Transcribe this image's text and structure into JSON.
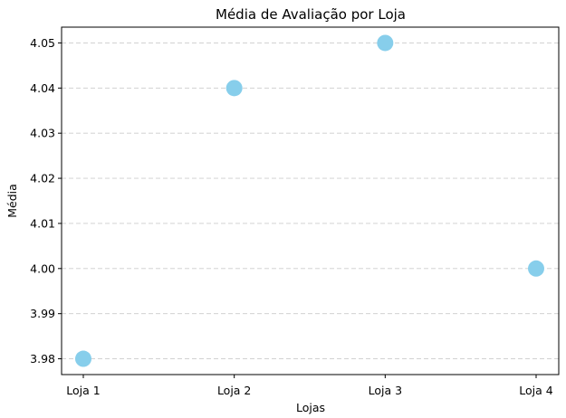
{
  "chart_data": {
    "type": "scatter",
    "title": "Média de Avaliação por Loja",
    "xlabel": "Lojas",
    "ylabel": "Média",
    "categories": [
      "Loja 1",
      "Loja 2",
      "Loja 3",
      "Loja 4"
    ],
    "values": [
      3.98,
      4.04,
      4.05,
      4.0
    ],
    "yticks": [
      "3.98",
      "3.99",
      "4.00",
      "4.01",
      "4.02",
      "4.03",
      "4.04",
      "4.05"
    ],
    "ylim": [
      3.9765,
      4.0535
    ],
    "grid": "horizontal-dashed",
    "marker_color": "#87CEEB",
    "grid_color": "#cccccc"
  }
}
